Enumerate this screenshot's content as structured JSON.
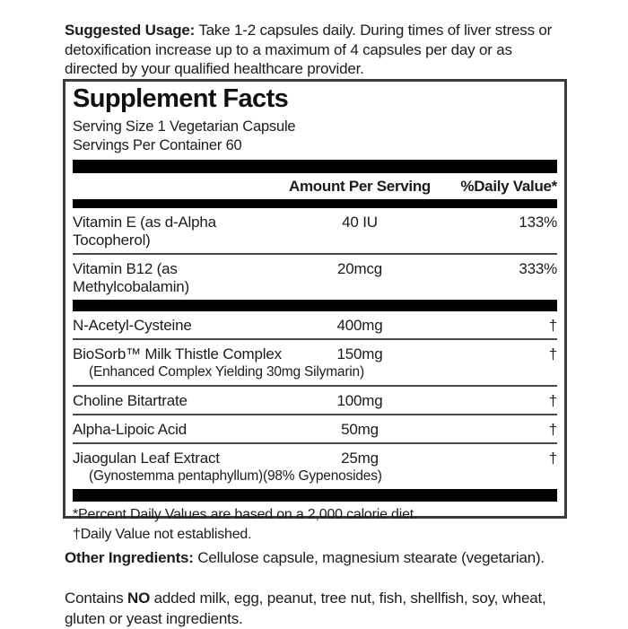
{
  "suggested_usage": {
    "label": "Suggested Usage:",
    "text": " Take 1-2 capsules daily. During times of liver stress or detoxification increase up to a maximum of 4 capsules per day or as directed by your qualified healthcare provider."
  },
  "supplement_facts": {
    "title": "Supplement Facts",
    "serving_size": "Serving Size 1 Vegetarian Capsule",
    "servings_per_container": "Servings Per Container 60",
    "header": {
      "amount": "Amount Per Serving",
      "daily_value": "%Daily Value*"
    },
    "rows": [
      {
        "name": "Vitamin E (as d-Alpha Tocopherol)",
        "amount": "40 IU",
        "daily_value": "133%"
      },
      {
        "name": "Vitamin B12 (as Methylcobalamin)",
        "amount": "20mcg",
        "daily_value": "333%"
      },
      {
        "name": "N-Acetyl-Cysteine",
        "amount": "400mg",
        "daily_value": "†"
      },
      {
        "name": "BioSorb™ Milk Thistle Complex",
        "detail": "(Enhanced Complex Yielding 30mg Silymarin)",
        "amount": "150mg",
        "daily_value": "†"
      },
      {
        "name": "Choline Bitartrate",
        "amount": "100mg",
        "daily_value": "†"
      },
      {
        "name": "Alpha-Lipoic Acid",
        "amount": "50mg",
        "daily_value": "†"
      },
      {
        "name": "Jiaogulan Leaf Extract",
        "detail": "(Gynostemma pentaphyllum)(98% Gypenosides)",
        "amount": "25mg",
        "daily_value": "†"
      }
    ],
    "footnotes": [
      "*Percent Daily Values are based on a 2,000 calorie diet.",
      "†Daily Value not established."
    ]
  },
  "other_ingredients": {
    "label": "Other Ingredients:",
    "text": "  Cellulose capsule, magnesium stearate (vegetarian)."
  },
  "allergen_statement": {
    "prefix": "Contains ",
    "emphasis": "NO",
    "text": " added milk, egg, peanut, tree nut, fish, shellfish, soy, wheat, gluten or yeast ingredients."
  },
  "colors": {
    "bar": "#000000",
    "border": "#3a3a3a",
    "text": "#1c1c1c"
  }
}
